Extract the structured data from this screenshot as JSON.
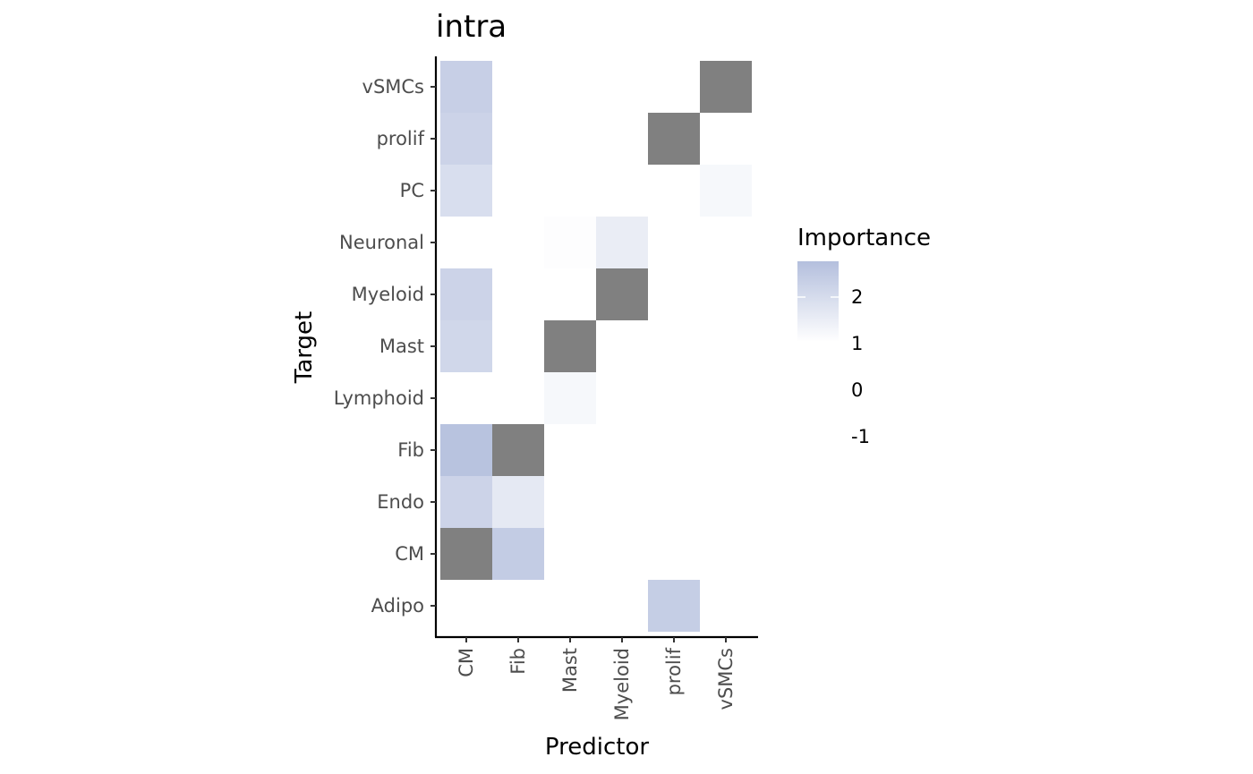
{
  "chart_data": {
    "type": "heatmap",
    "title": "intra",
    "xlabel": "Predictor",
    "ylabel": "Target",
    "x_categories": [
      "CM",
      "Fib",
      "Mast",
      "Myeloid",
      "prolif",
      "vSMCs"
    ],
    "y_categories": [
      "Adipo",
      "CM",
      "Endo",
      "Fib",
      "Lymphoid",
      "Mast",
      "Myeloid",
      "Neuronal",
      "PC",
      "prolif",
      "vSMCs"
    ],
    "cells": [
      {
        "x": "CM",
        "y": "vSMCs",
        "value": 2.3
      },
      {
        "x": "vSMCs",
        "y": "vSMCs",
        "value": null
      },
      {
        "x": "CM",
        "y": "prolif",
        "value": 2.2
      },
      {
        "x": "prolif",
        "y": "prolif",
        "value": null
      },
      {
        "x": "CM",
        "y": "PC",
        "value": 1.9
      },
      {
        "x": "vSMCs",
        "y": "PC",
        "value": 1.2
      },
      {
        "x": "Mast",
        "y": "Neuronal",
        "value": 1.05
      },
      {
        "x": "Myeloid",
        "y": "Neuronal",
        "value": 1.5
      },
      {
        "x": "CM",
        "y": "Myeloid",
        "value": 2.2
      },
      {
        "x": "Myeloid",
        "y": "Myeloid",
        "value": null
      },
      {
        "x": "CM",
        "y": "Mast",
        "value": 2.1
      },
      {
        "x": "Mast",
        "y": "Mast",
        "value": null
      },
      {
        "x": "Mast",
        "y": "Lymphoid",
        "value": 1.2
      },
      {
        "x": "CM",
        "y": "Fib",
        "value": 2.65
      },
      {
        "x": "Fib",
        "y": "Fib",
        "value": null
      },
      {
        "x": "CM",
        "y": "Endo",
        "value": 2.2
      },
      {
        "x": "Fib",
        "y": "Endo",
        "value": 1.6
      },
      {
        "x": "CM",
        "y": "CM",
        "value": null
      },
      {
        "x": "Fib",
        "y": "CM",
        "value": 2.4
      },
      {
        "x": "prolif",
        "y": "Adipo",
        "value": 2.35
      }
    ],
    "na_color": "#808080",
    "legend": {
      "title": "Importance",
      "position": "right",
      "labels": [
        "2",
        "1",
        "0",
        "-1"
      ],
      "colors": {
        "high": "#b4bfdd",
        "low": "#ffffff"
      }
    },
    "grid": false
  }
}
